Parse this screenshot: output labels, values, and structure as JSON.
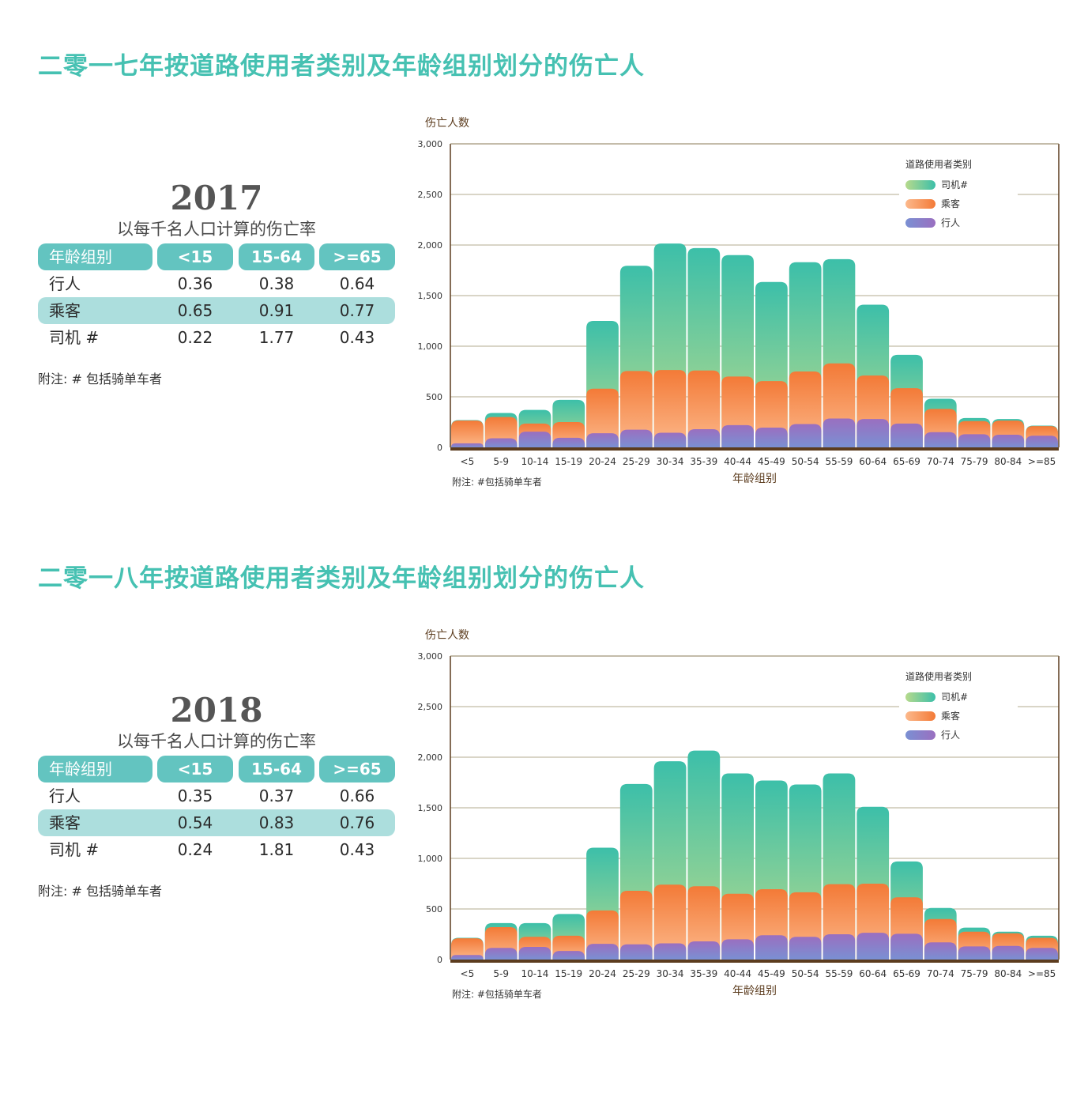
{
  "labels": {
    "rate_subtitle": "以每千名人口计算的伤亡率",
    "rate_note": "附注: # 包括骑单车者",
    "chart_note": "附注: #包括骑单车者",
    "chart_ylabel": "伤亡人数",
    "chart_xlabel": "年龄组别",
    "legend_title": "道路使用者类别"
  },
  "colors": {
    "title": "#46c1b2",
    "table_header": "#63c4c0",
    "table_alt_row": "#acdedd",
    "axis": "#5c3c1e",
    "driver_top": "#3cbfa9",
    "driver_bottom": "#b7da8c",
    "passenger_top": "#f37a37",
    "passenger_bottom": "#fcb98c",
    "pedestrian_top": "#9a6fc0",
    "pedestrian_bottom": "#7a90d3"
  },
  "sections": [
    {
      "title": "二零一七年按道路使用者类别及年龄组别划分的伤亡人",
      "year": "2017",
      "rate_table": {
        "headers": [
          "年龄组别",
          "<15",
          "15-64",
          ">=65"
        ],
        "rows": [
          [
            "行人",
            "0.36",
            "0.38",
            "0.64"
          ],
          [
            "乘客",
            "0.65",
            "0.91",
            "0.77"
          ],
          [
            "司机 #",
            "0.22",
            "1.77",
            "0.43"
          ]
        ]
      }
    },
    {
      "title": "二零一八年按道路使用者类别及年龄组别划分的伤亡人",
      "year": "2018",
      "rate_table": {
        "headers": [
          "年龄组别",
          "<15",
          "15-64",
          ">=65"
        ],
        "rows": [
          [
            "行人",
            "0.35",
            "0.37",
            "0.66"
          ],
          [
            "乘客",
            "0.54",
            "0.83",
            "0.76"
          ],
          [
            "司机 #",
            "0.24",
            "1.81",
            "0.43"
          ]
        ]
      }
    }
  ],
  "chart_data": [
    {
      "type": "bar",
      "stacked": true,
      "ylabel": "伤亡人数",
      "xlabel": "年龄组别",
      "ylim": [
        0,
        3000
      ],
      "yticks": [
        "0",
        "500",
        "1,000",
        "1,500",
        "2,000",
        "2,500",
        "3,000"
      ],
      "grid": true,
      "legend_position": "top-right",
      "categories": [
        "<5",
        "5-9",
        "10-14",
        "15-19",
        "20-24",
        "25-29",
        "30-34",
        "35-39",
        "40-44",
        "45-49",
        "50-54",
        "55-59",
        "60-64",
        "65-69",
        "70-74",
        "75-79",
        "80-84",
        ">=85"
      ],
      "series": [
        {
          "name": "行人",
          "values": [
            40,
            90,
            155,
            95,
            140,
            175,
            145,
            180,
            220,
            195,
            230,
            285,
            280,
            235,
            150,
            130,
            125,
            115
          ]
        },
        {
          "name": "乘客",
          "values": [
            225,
            210,
            80,
            155,
            440,
            580,
            620,
            580,
            480,
            460,
            520,
            545,
            430,
            350,
            230,
            130,
            140,
            95
          ]
        },
        {
          "name": "司机#",
          "values": [
            5,
            40,
            135,
            220,
            670,
            1040,
            1250,
            1210,
            1200,
            980,
            1080,
            1030,
            700,
            330,
            100,
            30,
            15,
            5
          ]
        }
      ]
    },
    {
      "type": "bar",
      "stacked": true,
      "ylabel": "伤亡人数",
      "xlabel": "年龄组别",
      "ylim": [
        0,
        3000
      ],
      "yticks": [
        "0",
        "500",
        "1,000",
        "1,500",
        "2,000",
        "2,500",
        "3,000"
      ],
      "grid": true,
      "legend_position": "top-right",
      "categories": [
        "<5",
        "5-9",
        "10-14",
        "15-19",
        "20-24",
        "25-29",
        "30-34",
        "35-39",
        "40-44",
        "45-49",
        "50-54",
        "55-59",
        "60-64",
        "65-69",
        "70-74",
        "75-79",
        "80-84",
        ">=85"
      ],
      "series": [
        {
          "name": "行人",
          "values": [
            45,
            115,
            125,
            85,
            155,
            150,
            160,
            180,
            200,
            240,
            225,
            250,
            265,
            255,
            170,
            130,
            135,
            115
          ]
        },
        {
          "name": "乘客",
          "values": [
            165,
            205,
            100,
            150,
            330,
            530,
            580,
            545,
            450,
            455,
            440,
            495,
            485,
            360,
            230,
            145,
            125,
            100
          ]
        },
        {
          "name": "司机#",
          "values": [
            5,
            40,
            135,
            215,
            620,
            1055,
            1220,
            1340,
            1190,
            1075,
            1065,
            1095,
            760,
            355,
            110,
            40,
            15,
            20
          ]
        }
      ]
    }
  ]
}
